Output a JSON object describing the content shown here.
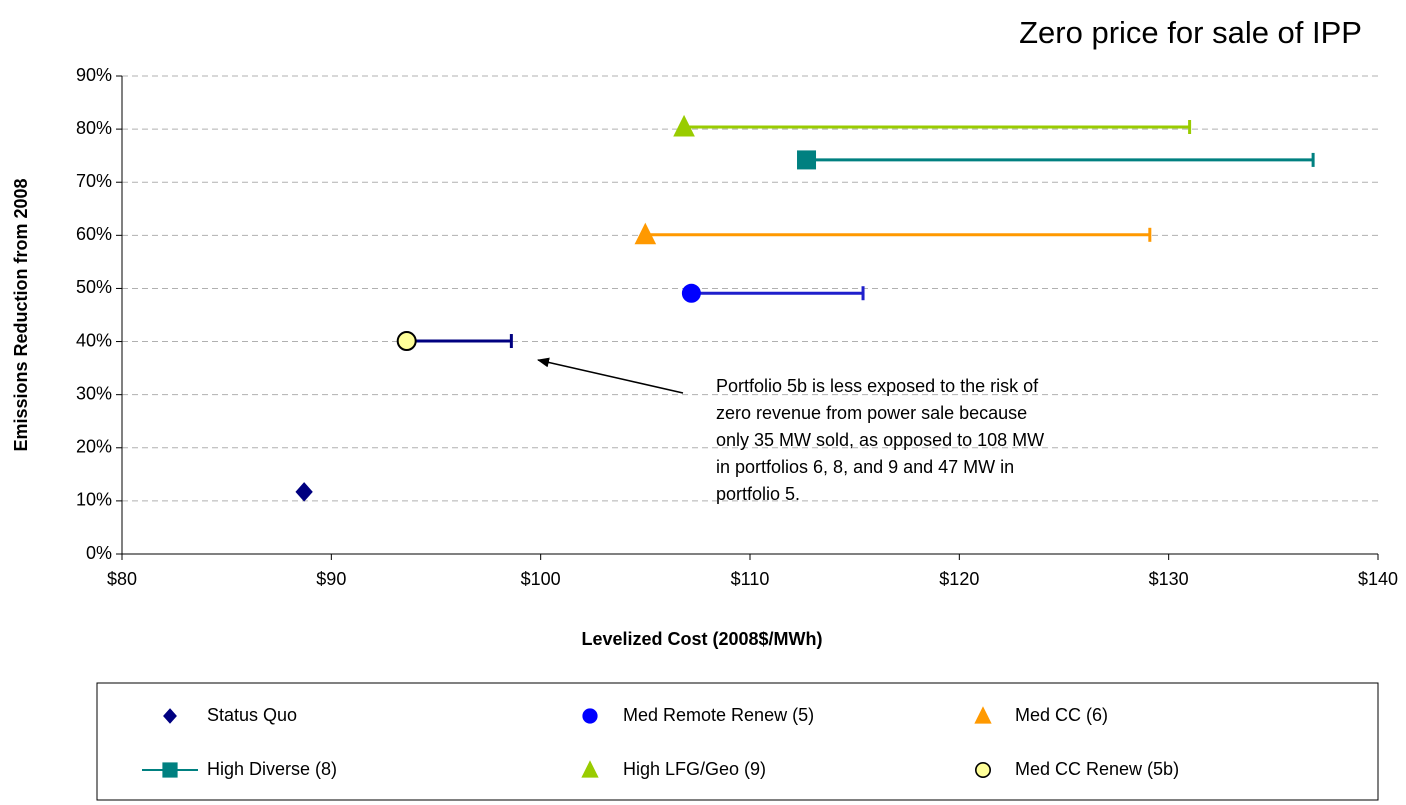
{
  "chart_data": {
    "type": "scatter",
    "title": "Zero price for sale of IPP",
    "xlabel": "Levelized Cost (2008$/MWh)",
    "ylabel": "Emissions Reduction from 2008",
    "xlim": [
      80,
      140
    ],
    "xticks": [
      {
        "value": 80,
        "label": "$80"
      },
      {
        "value": 90,
        "label": "$90"
      },
      {
        "value": 100,
        "label": "$100"
      },
      {
        "value": 110,
        "label": "$110"
      },
      {
        "value": 120,
        "label": "$120"
      },
      {
        "value": 130,
        "label": "$130"
      },
      {
        "value": 140,
        "label": "$140"
      }
    ],
    "ylim": [
      0,
      90
    ],
    "yticks": [
      {
        "value": 0,
        "label": "0%"
      },
      {
        "value": 10,
        "label": "10%"
      },
      {
        "value": 20,
        "label": "20%"
      },
      {
        "value": 30,
        "label": "30%"
      },
      {
        "value": 40,
        "label": "40%"
      },
      {
        "value": 50,
        "label": "50%"
      },
      {
        "value": 60,
        "label": "60%"
      },
      {
        "value": 70,
        "label": "70%"
      },
      {
        "value": 80,
        "label": "80%"
      },
      {
        "value": 90,
        "label": "90%"
      }
    ],
    "grid": true,
    "series": [
      {
        "name": "Status Quo",
        "marker": "diamond",
        "color": "#000080",
        "x": [
          88.7
        ],
        "y": [
          11.7
        ]
      },
      {
        "name": "Med Remote Renew (5)",
        "marker": "circle",
        "color": "#0000ff",
        "error_color": "#1f1fcc",
        "x": [
          107.2
        ],
        "y": [
          49.1
        ],
        "xerr": [
          8.2
        ]
      },
      {
        "name": "Med CC (6)",
        "marker": "triangle",
        "color": "#ff9900",
        "x": [
          105.0
        ],
        "y": [
          60.1
        ],
        "xerr": [
          24.1
        ]
      },
      {
        "name": "High Diverse (8)",
        "marker": "square",
        "color": "#008080",
        "x": [
          112.7
        ],
        "y": [
          74.2
        ],
        "xerr": [
          24.2
        ]
      },
      {
        "name": "High LFG/Geo (9)",
        "marker": "triangle",
        "color": "#99cc00",
        "x": [
          106.85
        ],
        "y": [
          80.4
        ],
        "xerr": [
          24.15
        ]
      },
      {
        "name": "Med CC Renew (5b)",
        "marker": "circle",
        "color": "#ffff99",
        "error_color": "#000080",
        "x": [
          93.6
        ],
        "y": [
          40.1
        ],
        "xerr": [
          5.0
        ]
      }
    ],
    "annotation": [
      "Portfolio 5b is less exposed to the risk of",
      "zero revenue from power sale because",
      "only 35 MW sold, as opposed to 108 MW",
      "in portfolios 6, 8, and 9 and 47 MW in",
      "portfolio 5."
    ]
  }
}
